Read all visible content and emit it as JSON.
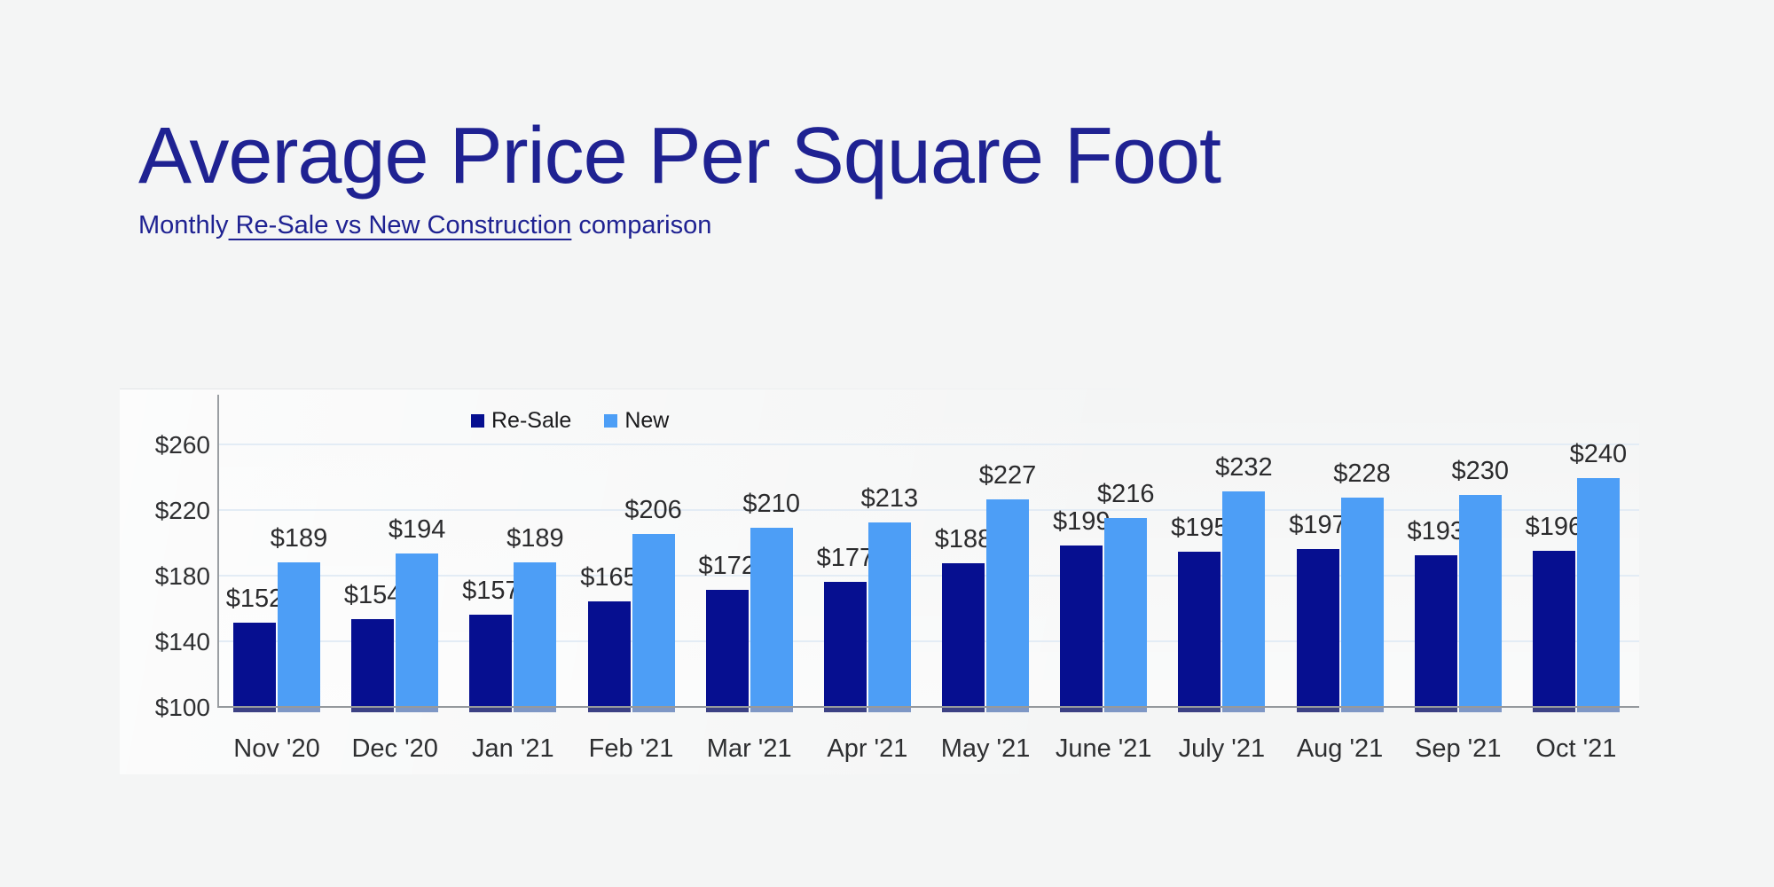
{
  "page": {
    "background": "#f4f5f5"
  },
  "header": {
    "title": "Average Price Per Square Foot",
    "title_color": "#1f2292",
    "subtitle_prefix": "Monthly",
    "subtitle_link": " Re-Sale vs New Construction",
    "subtitle_suffix": " comparison"
  },
  "chart_data": {
    "type": "bar",
    "title": "Average Price Per Square Foot",
    "subtitle": "Monthly Re-Sale vs New Construction comparison",
    "categories": [
      "Nov '20",
      "Dec '20",
      "Jan '21",
      "Feb '21",
      "Mar '21",
      "Apr '21",
      "May '21",
      "June '21",
      "July '21",
      "Aug '21",
      "Sep '21",
      "Oct '21"
    ],
    "series": [
      {
        "name": "Re-Sale",
        "color": "#060f90",
        "values": [
          152,
          154,
          157,
          165,
          172,
          177,
          188,
          199,
          195,
          197,
          193,
          196
        ]
      },
      {
        "name": "New",
        "color": "#4d9ef6",
        "values": [
          189,
          194,
          189,
          206,
          210,
          213,
          227,
          216,
          232,
          228,
          230,
          240
        ]
      }
    ],
    "value_prefix": "$",
    "data_labels": true,
    "xlabel": "",
    "ylabel": "",
    "yticks": [
      100,
      140,
      180,
      220,
      260
    ],
    "ylim": [
      100,
      291
    ],
    "grid": "horizontal",
    "gridline_color": "#e3ecf5",
    "axis_line_color": "#95999d",
    "label_text_color": "#2b2b2d",
    "legend_position": "top-inset-left"
  }
}
